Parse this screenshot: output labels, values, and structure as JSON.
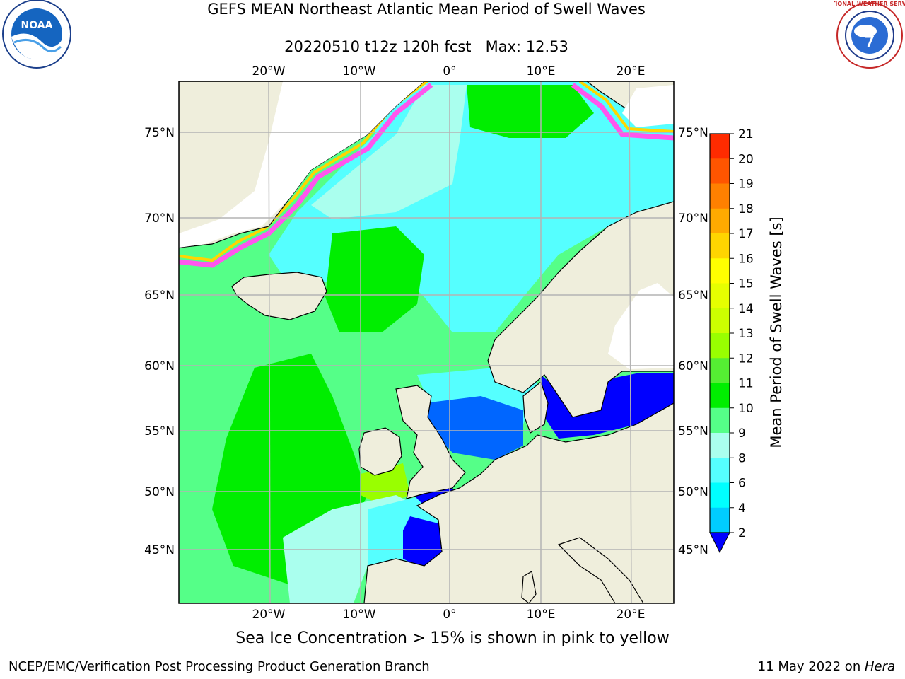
{
  "header": {
    "title_line1": "GEFS MEAN Northeast Atlantic Mean Period of Swell Waves",
    "title_line2": "20220510 t12z 120h fcst   Max: 12.53"
  },
  "map": {
    "lon_ticks": [
      "20°W",
      "10°W",
      "0°",
      "10°E",
      "20°E"
    ],
    "lat_ticks_left": [
      "75°N",
      "70°N",
      "65°N",
      "60°N",
      "55°N",
      "50°N",
      "45°N"
    ],
    "lat_ticks_right": [
      "75°N",
      "70°N",
      "65°N",
      "60°N",
      "55°N",
      "50°N",
      "45°N"
    ],
    "colors": {
      "land": "#efeedc",
      "coast": "#000000",
      "grid": "#b4b4b4"
    }
  },
  "colorbar": {
    "label": "Mean Period of Swell Waves [s]",
    "ticks": [
      "21",
      "20",
      "19",
      "18",
      "17",
      "16",
      "15",
      "14",
      "13",
      "12",
      "11",
      "10",
      "9",
      "8",
      "6",
      "4",
      "2"
    ],
    "colors": [
      "#ff0000",
      "#ff2b00",
      "#ff5500",
      "#ff8000",
      "#ffaa00",
      "#ffd500",
      "#ffff00",
      "#e6ff00",
      "#ccff00",
      "#99ff00",
      "#55ee33",
      "#00ee00",
      "#55ff88",
      "#aaffee",
      "#55ffff",
      "#00ffff",
      "#00ccff",
      "#0066ff"
    ],
    "under_color": "#0000ff"
  },
  "caption": "Sea Ice Concentration > 15% is shown in pink to yellow",
  "footer": {
    "left": "NCEP/EMC/Verification Post Processing Product Generation Branch",
    "right_prefix": "11 May 2022 on ",
    "right_host": "Hera"
  },
  "logos": {
    "noaa_text": "NOAA",
    "nws_text": "NATIONAL WEATHER SERVICE"
  }
}
